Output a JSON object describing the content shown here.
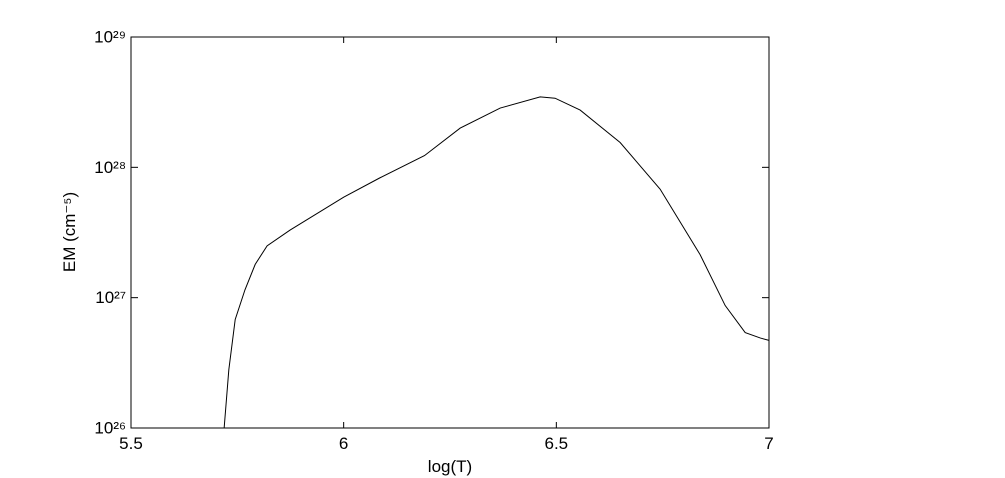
{
  "chart_data": {
    "type": "line",
    "xlabel": "log(T)",
    "ylabel": "EM (cm⁻⁵)",
    "x": [
      5.719,
      5.73,
      5.745,
      5.768,
      5.792,
      5.82,
      5.874,
      6.0,
      6.085,
      6.19,
      6.274,
      6.368,
      6.462,
      6.497,
      6.556,
      6.65,
      6.744,
      6.838,
      6.897,
      6.944,
      6.98,
      7.0
    ],
    "series": [
      {
        "color": "#000000",
        "values": [
          1e+26,
          2.8e+26,
          6.8e+26,
          1.15e+27,
          1.8e+27,
          2.5e+27,
          3.3e+27,
          5.9e+27,
          8.3e+27,
          1.23e+28,
          2e+28,
          2.85e+28,
          3.47e+28,
          3.39e+28,
          2.75e+28,
          1.55e+28,
          6.8e+27,
          2.14e+27,
          8.7e+26,
          5.4e+26,
          4.9e+26,
          4.7e+26
        ]
      }
    ],
    "xlim": [
      5.5,
      7
    ],
    "xticks": [
      5.5,
      6,
      6.5,
      7
    ],
    "ylim": [
      1e+26,
      1e+29
    ],
    "yticks": [
      {
        "value": 1e+26,
        "label": "10²⁶"
      },
      {
        "value": 1e+27,
        "label": "10²⁷"
      },
      {
        "value": 1e+28,
        "label": "10²⁸"
      },
      {
        "value": 1e+29,
        "label": "10²⁹"
      }
    ],
    "ylog": true,
    "grid": false
  }
}
